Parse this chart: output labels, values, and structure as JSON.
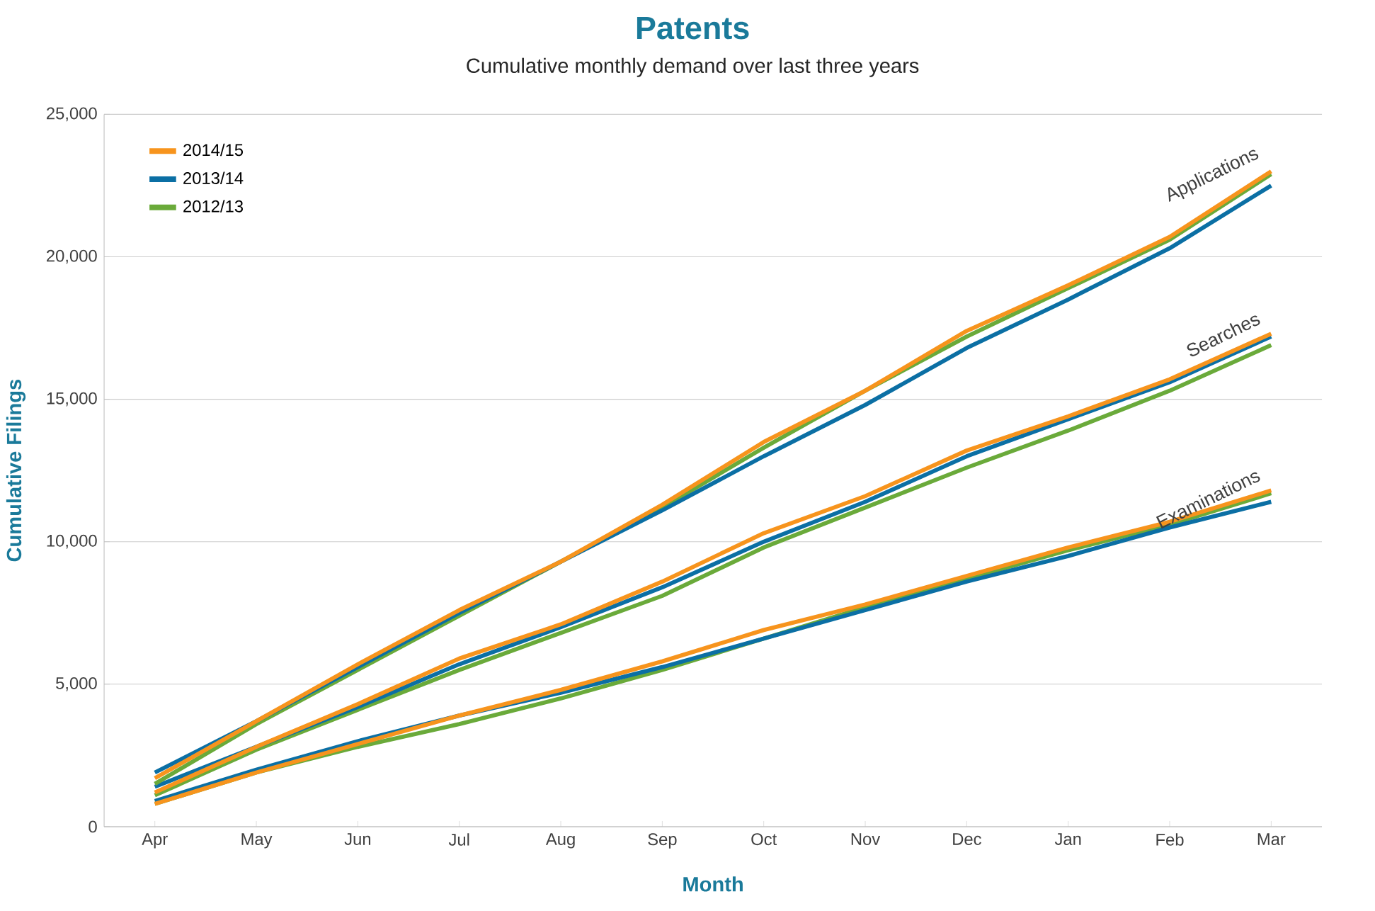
{
  "chart_data": {
    "type": "line",
    "title": "Patents",
    "subtitle": "Cumulative monthly demand over last three years",
    "xlabel": "Month",
    "ylabel": "Cumulative Filings",
    "categories": [
      "Apr",
      "May",
      "Jun",
      "Jul",
      "Aug",
      "Sep",
      "Oct",
      "Nov",
      "Dec",
      "Jan",
      "Feb",
      "Mar"
    ],
    "ylim": [
      0,
      25000
    ],
    "yticks": [
      {
        "value": 0,
        "label": "0"
      },
      {
        "value": 5000,
        "label": "5,000"
      },
      {
        "value": 10000,
        "label": "10,000"
      },
      {
        "value": 15000,
        "label": "15,000"
      },
      {
        "value": 20000,
        "label": "20,000"
      },
      {
        "value": 25000,
        "label": "25,000"
      }
    ],
    "grid": "y",
    "legend": "top left",
    "marker": "none",
    "line_style": "solid",
    "series": [
      {
        "name": "2014/15",
        "color": "#f7941d",
        "values": [
          1700,
          3700,
          5700,
          7600,
          9300,
          11300,
          13500,
          15300,
          17400,
          19000,
          20700,
          23000
        ]
      },
      {
        "name": "2013/14",
        "color": "#0b6fa4",
        "values": [
          1900,
          3700,
          5600,
          7500,
          9300,
          11100,
          13000,
          14800,
          16800,
          18500,
          20300,
          22500
        ]
      },
      {
        "name": "2012/13",
        "color": "#6aaa3a",
        "values": [
          1500,
          3600,
          5500,
          7400,
          9300,
          11200,
          13300,
          15300,
          17200,
          18900,
          20600,
          22900
        ]
      },
      {
        "color": "#f7941d",
        "values": [
          1200,
          2800,
          4300,
          5900,
          7100,
          8600,
          10300,
          11600,
          13200,
          14400,
          15700,
          17300
        ]
      },
      {
        "color": "#0b6fa4",
        "values": [
          1400,
          2800,
          4200,
          5700,
          7000,
          8400,
          10000,
          11400,
          13000,
          14300,
          15600,
          17200
        ]
      },
      {
        "color": "#6aaa3a",
        "values": [
          1100,
          2700,
          4100,
          5500,
          6800,
          8100,
          9800,
          11200,
          12600,
          13900,
          15300,
          16900
        ]
      },
      {
        "color": "#f7941d",
        "values": [
          800,
          1900,
          2900,
          3900,
          4800,
          5800,
          6900,
          7800,
          8800,
          9800,
          10700,
          11800
        ]
      },
      {
        "color": "#0b6fa4",
        "values": [
          900,
          2000,
          3000,
          3900,
          4700,
          5600,
          6600,
          7600,
          8600,
          9500,
          10500,
          11400
        ]
      },
      {
        "color": "#6aaa3a",
        "values": [
          800,
          1900,
          2800,
          3600,
          4500,
          5500,
          6600,
          7700,
          8700,
          9700,
          10600,
          11700
        ]
      }
    ],
    "annotations": [
      {
        "text": "Applications",
        "x": "Mar",
        "y": 23000
      },
      {
        "text": "Searches",
        "x": "Mar",
        "y": 17300
      },
      {
        "text": "Examinations",
        "x": "Mar",
        "y": 11800
      }
    ]
  }
}
